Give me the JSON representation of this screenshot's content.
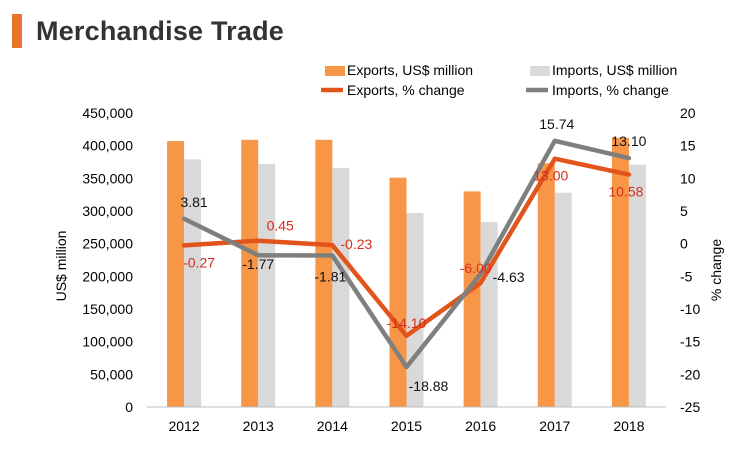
{
  "page": {
    "title": "Merchandise Trade",
    "accent": "#E8732A"
  },
  "chart_data": {
    "type": "bar",
    "categories": [
      "2012",
      "2013",
      "2014",
      "2015",
      "2016",
      "2017",
      "2018"
    ],
    "series": [
      {
        "name": "Exports, US$ million",
        "kind": "bar",
        "axis": "left",
        "color": "#F79646",
        "values": [
          407000,
          409000,
          409000,
          351000,
          330000,
          373000,
          412000
        ]
      },
      {
        "name": "Imports, US$ million",
        "kind": "bar",
        "axis": "left",
        "color": "#D9D9D9",
        "values": [
          379000,
          372000,
          366000,
          297000,
          283000,
          328000,
          371000
        ]
      },
      {
        "name": "Exports, % change",
        "kind": "line",
        "axis": "right",
        "color": "#E2541B",
        "label_color": "#D62E1F",
        "values": [
          -0.27,
          0.45,
          -0.23,
          -14.1,
          -6.0,
          13.0,
          10.58
        ],
        "labels": [
          "-0.27",
          "0.45",
          "-0.23",
          "-14.10",
          "-6.00",
          "13.00",
          "10.58"
        ]
      },
      {
        "name": "Imports, % change",
        "kind": "line",
        "axis": "right",
        "color": "#7F7F7F",
        "label_color": "#111111",
        "values": [
          3.81,
          -1.77,
          -1.81,
          -18.88,
          -4.63,
          15.74,
          13.1
        ],
        "labels": [
          "3.81",
          "-1.77",
          "-1.81",
          "-18.88",
          "-4.63",
          "15.74",
          "13.10"
        ]
      }
    ],
    "ylabel": "US$ million",
    "y2label": "% change",
    "ylim": [
      0,
      450000
    ],
    "y2lim": [
      -25,
      20
    ],
    "yticks": [
      "0",
      "50,000",
      "100,000",
      "150,000",
      "200,000",
      "250,000",
      "300,000",
      "350,000",
      "400,000",
      "450,000"
    ],
    "y2ticks": [
      "-25",
      "-20",
      "-15",
      "-10",
      "-5",
      "0",
      "5",
      "10",
      "15",
      "20"
    ],
    "grid": false,
    "legend_position": "top"
  }
}
